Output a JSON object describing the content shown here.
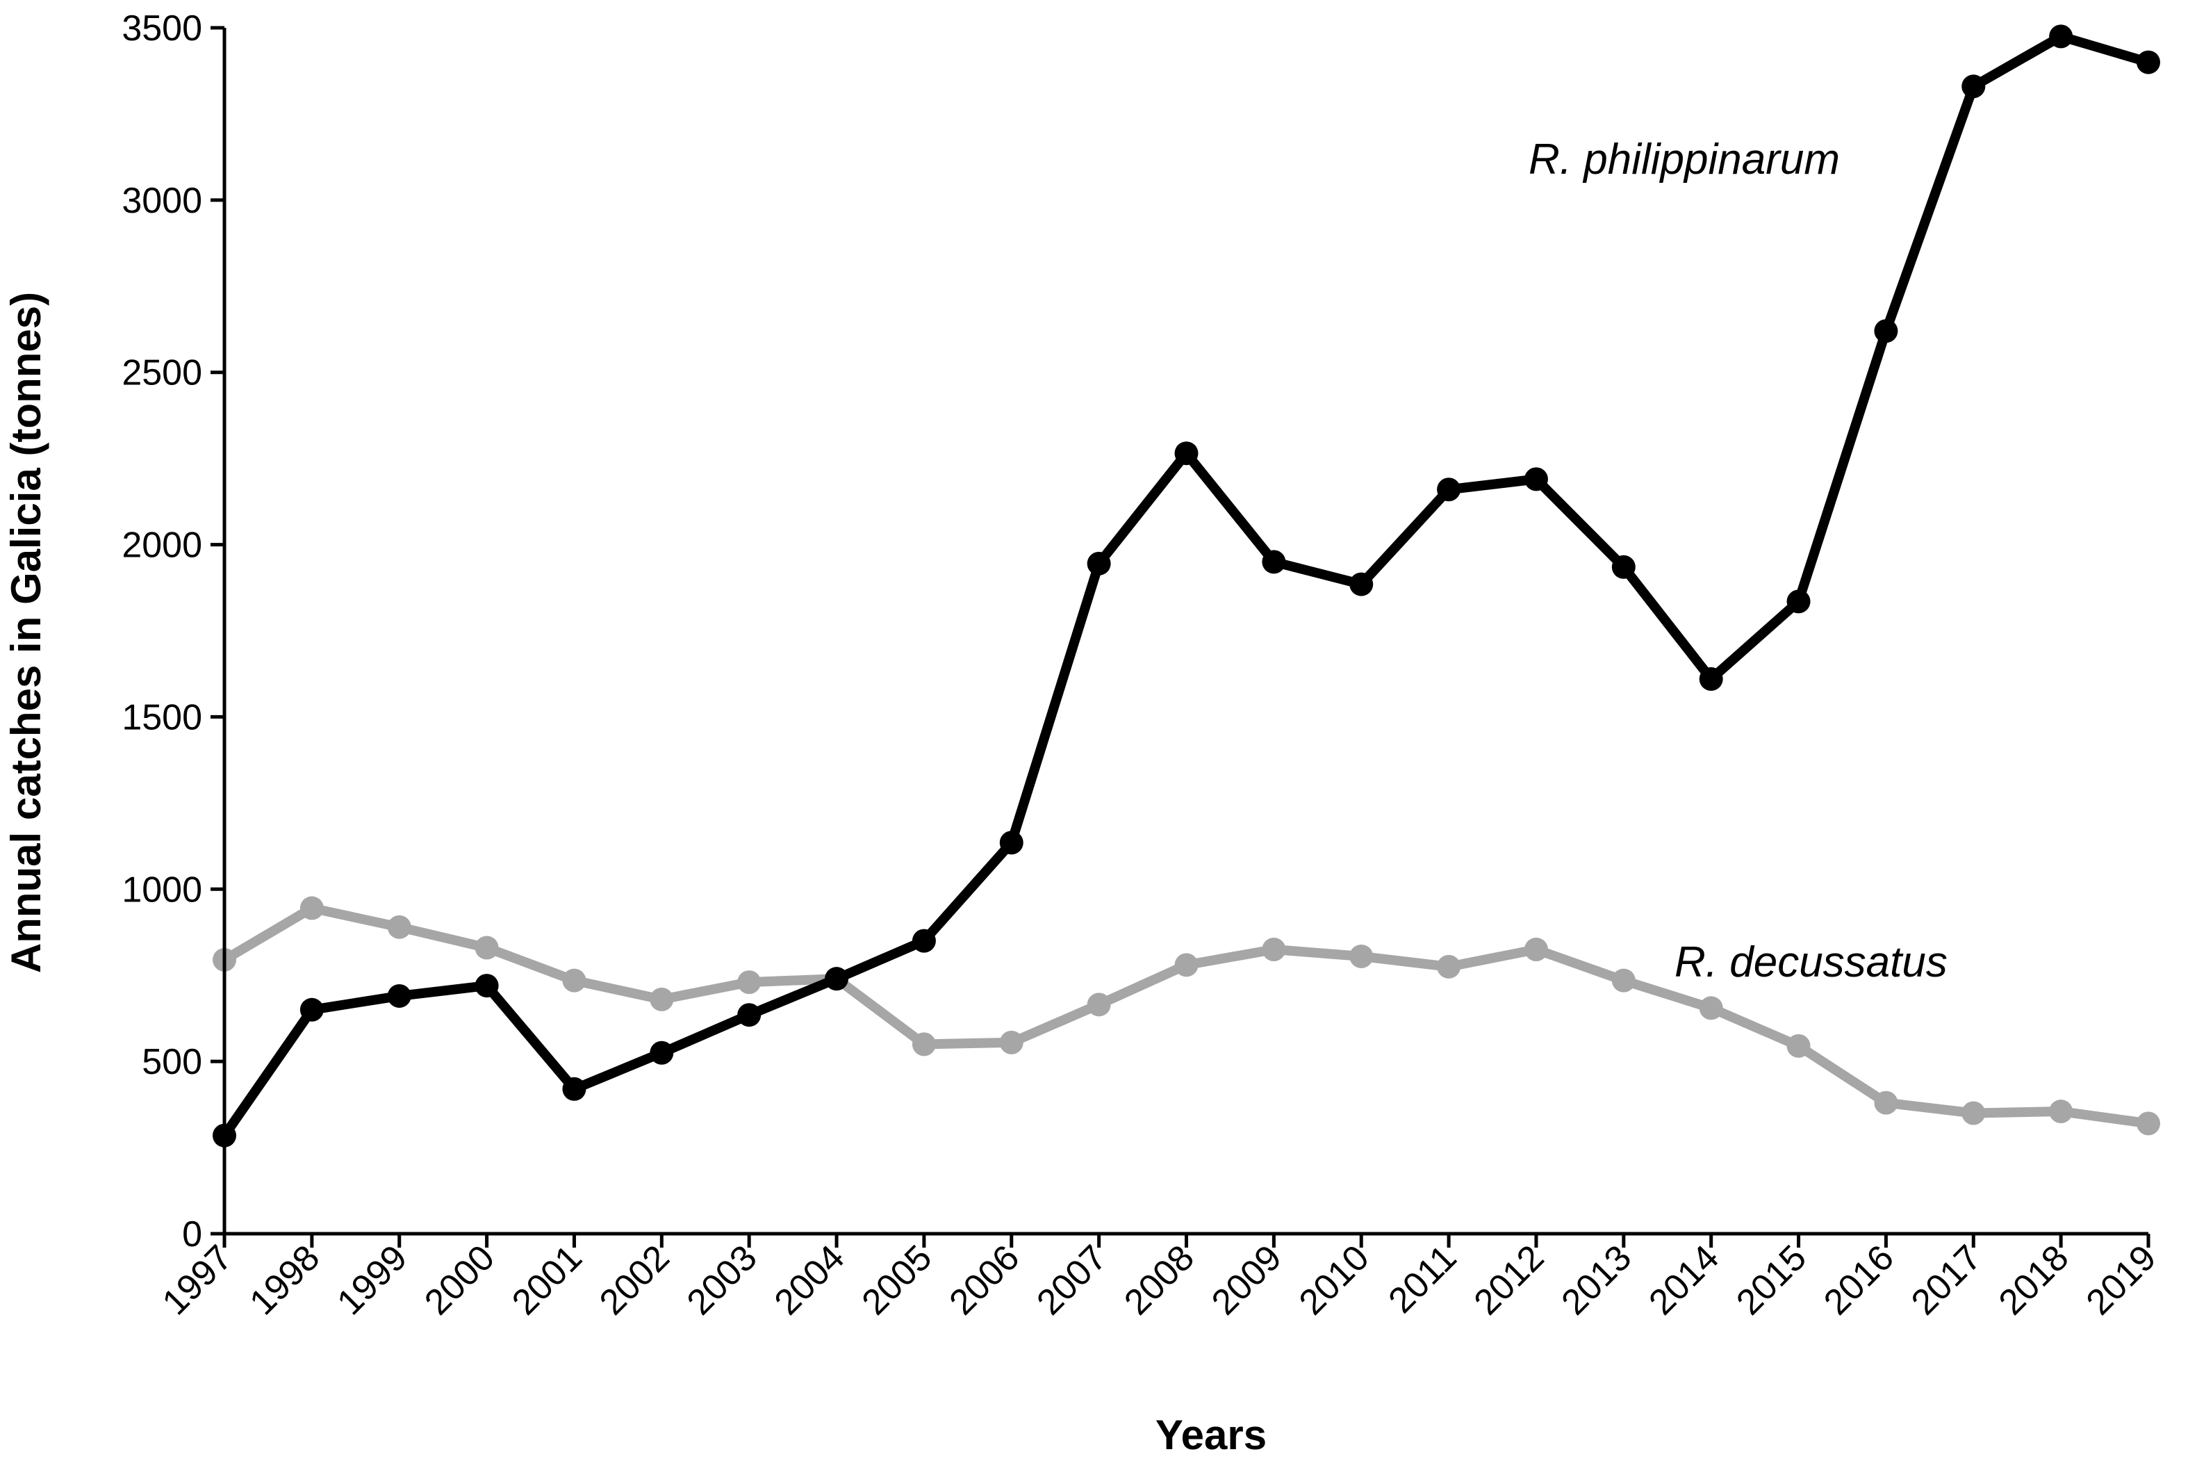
{
  "chart_data": {
    "type": "line",
    "title": "",
    "xlabel": "Years",
    "ylabel": "Annual catches in Galicia (tonnes)",
    "ylim": [
      0,
      3500
    ],
    "yticks": [
      "0",
      "500",
      "1000",
      "1500",
      "2000",
      "2500",
      "3000",
      "3500"
    ],
    "categories": [
      "1997",
      "1998",
      "1999",
      "2000",
      "2001",
      "2002",
      "2003",
      "2004",
      "2005",
      "2006",
      "2007",
      "2008",
      "2009",
      "2010",
      "2011",
      "2012",
      "2013",
      "2014",
      "2015",
      "2016",
      "2017",
      "2018",
      "2019"
    ],
    "grid": false,
    "legend": "none (series labelled directly on plot)",
    "series": [
      {
        "name": "R. decussatus",
        "color": "#a6a6a6",
        "values": [
          795,
          945,
          890,
          830,
          735,
          680,
          730,
          740,
          550,
          555,
          665,
          780,
          825,
          805,
          775,
          825,
          735,
          655,
          545,
          380,
          350,
          355,
          320
        ]
      },
      {
        "name": "R. philippinarum",
        "color": "#000000",
        "values": [
          285,
          650,
          690,
          720,
          420,
          525,
          635,
          740,
          850,
          1135,
          1945,
          2265,
          1950,
          1885,
          2160,
          2190,
          1935,
          1610,
          1835,
          2620,
          3330,
          3475,
          3400
        ]
      }
    ]
  }
}
